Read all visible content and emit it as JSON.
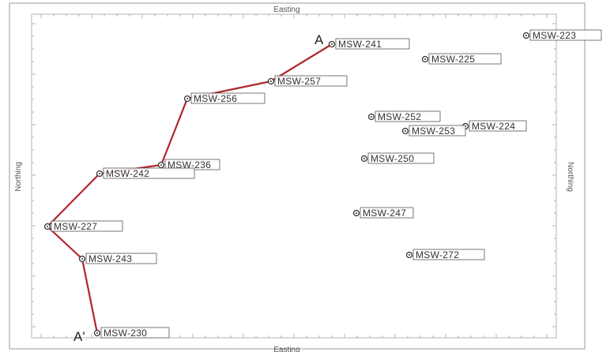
{
  "axes": {
    "x_title_top": "Easting",
    "x_title_bottom": "Easting",
    "y_title_left": "Northing",
    "y_title_right": "Northing"
  },
  "colors": {
    "section_line": "#b0262b",
    "frame": "#999999",
    "well_symbol": "#333333",
    "label_box": "#555555"
  },
  "section": {
    "start_label": "A",
    "end_label": "A'",
    "path_wells": [
      "MSW-241",
      "MSW-257",
      "MSW-256",
      "MSW-236",
      "MSW-242",
      "MSW-227",
      "MSW-243",
      "MSW-230"
    ]
  },
  "wells": [
    {
      "id": "MSW-223",
      "label": "MSW-223"
    },
    {
      "id": "MSW-241",
      "label": "MSW-241"
    },
    {
      "id": "MSW-225",
      "label": "MSW-225"
    },
    {
      "id": "MSW-257",
      "label": "MSW-257"
    },
    {
      "id": "MSW-256",
      "label": "MSW-256"
    },
    {
      "id": "MSW-252",
      "label": "MSW-252"
    },
    {
      "id": "MSW-224",
      "label": "MSW-224"
    },
    {
      "id": "MSW-253",
      "label": "MSW-253"
    },
    {
      "id": "MSW-236",
      "label": "MSW-236"
    },
    {
      "id": "MSW-242",
      "label": "MSW-242"
    },
    {
      "id": "MSW-250",
      "label": "MSW-250"
    },
    {
      "id": "MSW-227",
      "label": "MSW-227"
    },
    {
      "id": "MSW-247",
      "label": "MSW-247"
    },
    {
      "id": "MSW-243",
      "label": "MSW-243"
    },
    {
      "id": "MSW-272",
      "label": "MSW-272"
    },
    {
      "id": "MSW-230",
      "label": "MSW-230"
    }
  ]
}
